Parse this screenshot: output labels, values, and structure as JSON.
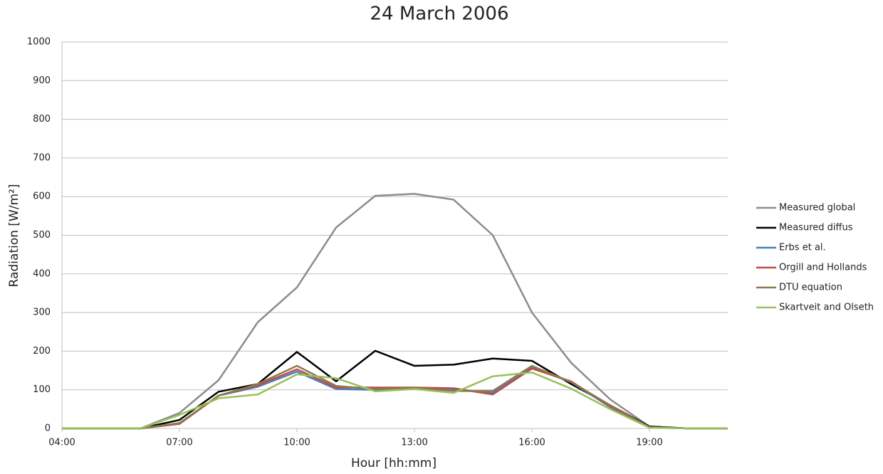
{
  "chart_data": {
    "type": "line",
    "title": "24 March 2006",
    "x_label": "Hour [hh:mm]",
    "y_label": "Radiation [W/m²]",
    "categories": [
      "04:00",
      null,
      null,
      "07:00",
      null,
      null,
      "10:00",
      null,
      null,
      "13:00",
      null,
      null,
      "16:00",
      null,
      null,
      "19:00",
      null,
      null
    ],
    "ylim": [
      0,
      1000
    ],
    "yticks": [
      0,
      100,
      200,
      300,
      400,
      500,
      600,
      700,
      800,
      900,
      1000
    ],
    "grid": true,
    "legend": "right",
    "series": [
      {
        "name": "Measured global",
        "color": "#8c8c8c",
        "values": [
          0,
          0,
          0,
          40,
          125,
          275,
          365,
          520,
          602,
          607,
          592,
          500,
          300,
          170,
          75,
          5,
          0,
          0
        ]
      },
      {
        "name": "Measured diffus",
        "color": "#000000",
        "values": [
          0,
          0,
          0,
          22,
          95,
          115,
          198,
          122,
          201,
          162,
          165,
          181,
          175,
          115,
          60,
          5,
          0,
          0
        ]
      },
      {
        "name": "Erbs et al.",
        "color": "#4a7ebb",
        "values": [
          0,
          0,
          0,
          12,
          85,
          108,
          147,
          102,
          100,
          103,
          100,
          92,
          157,
          120,
          55,
          3,
          0,
          0
        ]
      },
      {
        "name": "Orgill and Hollands",
        "color": "#be4b48",
        "values": [
          0,
          0,
          0,
          12,
          85,
          112,
          153,
          106,
          106,
          106,
          104,
          88,
          155,
          122,
          57,
          3,
          0,
          0
        ]
      },
      {
        "name": "DTU equation",
        "color": "#8c7a4e",
        "values": [
          0,
          0,
          0,
          14,
          85,
          115,
          162,
          110,
          102,
          105,
          97,
          97,
          162,
          120,
          60,
          3,
          0,
          0
        ]
      },
      {
        "name": "Skartveit and Olseth",
        "color": "#98c15a",
        "values": [
          0,
          0,
          0,
          35,
          78,
          88,
          140,
          130,
          96,
          102,
          92,
          135,
          145,
          103,
          50,
          2,
          0,
          0
        ]
      }
    ]
  }
}
